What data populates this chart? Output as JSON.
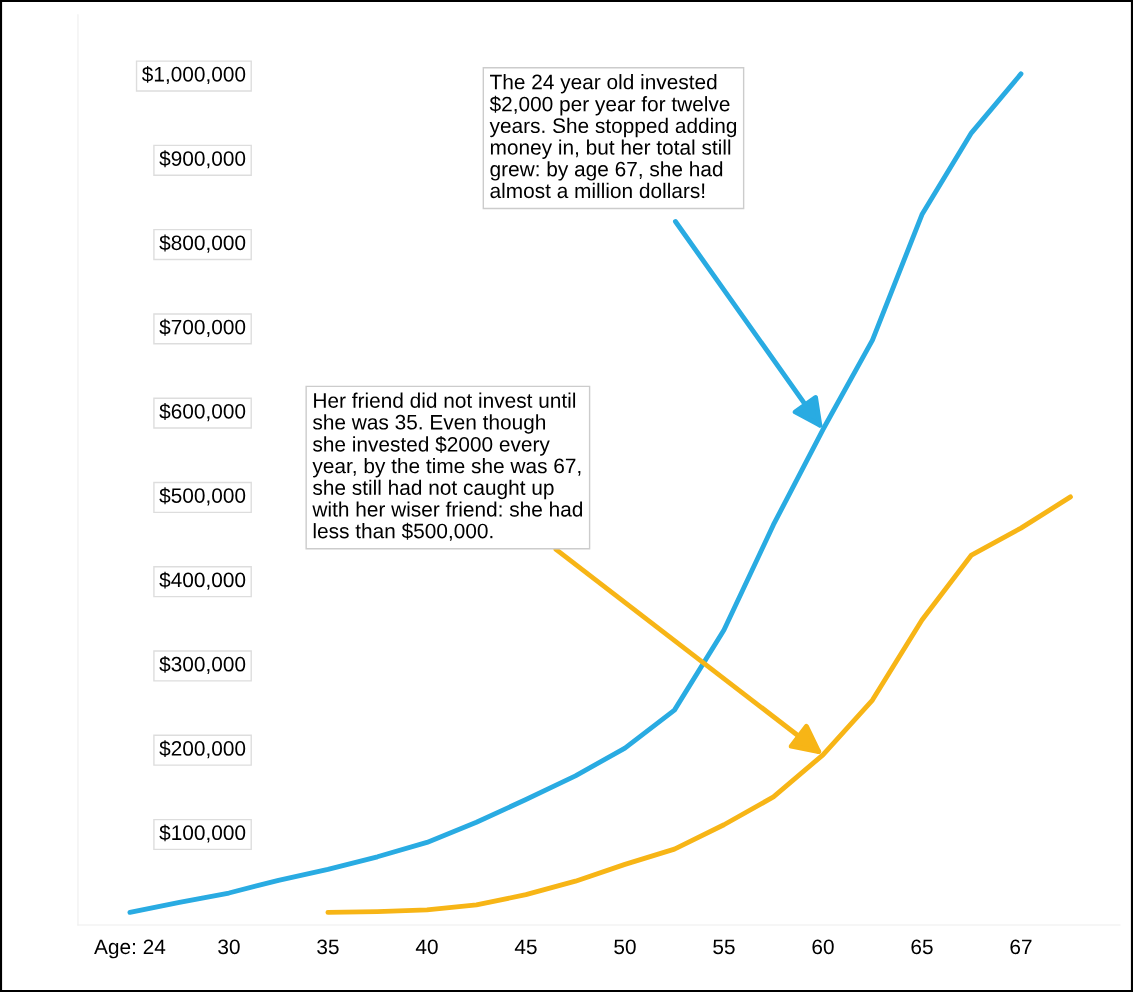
{
  "chart_data": {
    "type": "line",
    "categories": [
      "Age: 24",
      null,
      "30",
      null,
      "35",
      null,
      "40",
      null,
      "45",
      null,
      "50",
      null,
      "55",
      null,
      "60",
      null,
      "65",
      null,
      "67",
      null
    ],
    "series": [
      {
        "color": "#29abe2",
        "values": [
          5000,
          17000,
          28000,
          43000,
          56000,
          71000,
          88000,
          112000,
          139000,
          167000,
          200000,
          245000,
          340000,
          465000,
          578000,
          684000,
          833000,
          930000,
          1000000,
          null
        ]
      },
      {
        "color": "#f7b516",
        "values": [
          null,
          null,
          null,
          null,
          5000,
          6000,
          8000,
          14000,
          26000,
          42000,
          62000,
          80000,
          109000,
          142000,
          192000,
          257000,
          352000,
          429000,
          461000,
          498000
        ]
      }
    ],
    "ylim": [
      -10000,
      1070000
    ],
    "yticks": [
      {
        "value": 100000,
        "label": "$100,000"
      },
      {
        "value": 200000,
        "label": "$200,000"
      },
      {
        "value": 300000,
        "label": "$300,000"
      },
      {
        "value": 400000,
        "label": "$400,000"
      },
      {
        "value": 500000,
        "label": "$500,000"
      },
      {
        "value": 600000,
        "label": "$600,000"
      },
      {
        "value": 700000,
        "label": "$700,000"
      },
      {
        "value": 800000,
        "label": "$800,000"
      },
      {
        "value": 900000,
        "label": "$900,000"
      },
      {
        "value": 1000000,
        "label": "$1,000,000"
      }
    ],
    "annotations": [
      {
        "text": "The 24 year old invested\n$2,000 per year for twelve\nyears. She stopped adding\nmoney in, but her total still\ngrew: by age 67, she had\nalmost a million dollars!",
        "x": "60",
        "y": 578000
      },
      {
        "text": "Her friend did not invest until\nshe was 35. Even though\nshe invested $2000 every\nyear, by the time she was 67,\nshe still had not caught up\nwith her wiser friend: she had\nless than $500,000.",
        "x": "60",
        "y": 192000
      }
    ],
    "grid": false,
    "legend": false,
    "marker": "none",
    "line_style": "solid"
  }
}
